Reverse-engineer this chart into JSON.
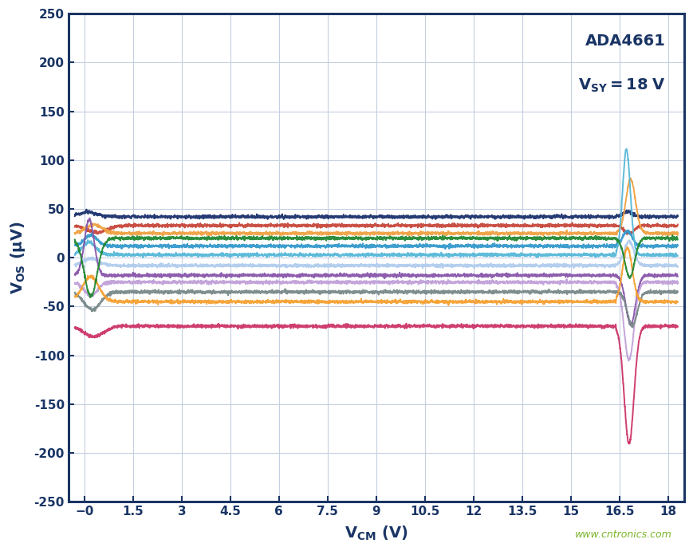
{
  "title_line1": "ADA4661",
  "title_line2": "V_{SY} = 18 V",
  "xlabel": "V_{CM} (V)",
  "ylabel": "V_{OS} (μV)",
  "xlim": [
    -0.5,
    18.5
  ],
  "ylim": [
    -250,
    250
  ],
  "xtick_positions": [
    0,
    1.5,
    3,
    4.5,
    6,
    7.5,
    9,
    10.5,
    12,
    13.5,
    15,
    16.5,
    18
  ],
  "xtick_labels": [
    "−0",
    "1.5",
    "3",
    "4.5",
    "6",
    "7.5",
    "9",
    "10.5",
    "12",
    "13.5",
    "15",
    "16.5",
    "18"
  ],
  "ytick_positions": [
    -250,
    -200,
    -150,
    -100,
    -50,
    0,
    50,
    100,
    150,
    200,
    250
  ],
  "watermark": "www.cntronics.com",
  "bg_color": "#ffffff",
  "plot_bg_color": "#ffffff",
  "border_color": "#1a3565",
  "grid_color": "#c5cfe0",
  "watermark_color": "#78b428",
  "title_color": "#1a3565",
  "curves": [
    {
      "flat": 42,
      "color": "#1a2f6b",
      "lp": 5,
      "rp": 5,
      "lpx": 0.1,
      "rpx": 16.75,
      "lsig": 0.3,
      "rsig": 0.15
    },
    {
      "flat": 33,
      "color": "#c8453a",
      "lp": -8,
      "rp": -8,
      "lpx": 0.4,
      "rpx": 16.8,
      "lsig": 0.3,
      "rsig": 0.15
    },
    {
      "flat": 25,
      "color": "#f0a040",
      "lp": 10,
      "rp": 55,
      "lpx": 0.3,
      "rpx": 16.85,
      "lsig": 0.25,
      "rsig": 0.15
    },
    {
      "flat": 12,
      "color": "#3399cc",
      "lp": 12,
      "rp": 15,
      "lpx": 0.2,
      "rpx": 16.75,
      "lsig": 0.2,
      "rsig": 0.15
    },
    {
      "flat": 3,
      "color": "#55b8d8",
      "lp": 14,
      "rp": 108,
      "lpx": 0.15,
      "rpx": 16.72,
      "lsig": 0.2,
      "rsig": 0.12
    },
    {
      "flat": -8,
      "color": "#b0ccee",
      "lp": 8,
      "rp": 25,
      "lpx": 0.2,
      "rpx": 16.8,
      "lsig": 0.25,
      "rsig": 0.15
    },
    {
      "flat": -18,
      "color": "#8855aa",
      "lp": 62,
      "rp": -50,
      "lpx": 0.15,
      "rpx": 16.85,
      "lsig": 0.15,
      "rsig": 0.15
    },
    {
      "flat": -25,
      "color": "#c0a0d8",
      "lp": -15,
      "rp": -80,
      "lpx": 0.2,
      "rpx": 16.8,
      "lsig": 0.2,
      "rsig": 0.15
    },
    {
      "flat": -35,
      "color": "#778888",
      "lp": -20,
      "rp": -35,
      "lpx": 0.25,
      "rpx": 16.9,
      "lsig": 0.25,
      "rsig": 0.15
    },
    {
      "flat": -45,
      "color": "#f5a030",
      "lp": 28,
      "rp": 55,
      "lpx": 0.2,
      "rpx": 16.75,
      "lsig": 0.25,
      "rsig": 0.15
    },
    {
      "flat": -70,
      "color": "#cc3366",
      "lp": -12,
      "rp": -120,
      "lpx": 0.3,
      "rpx": 16.8,
      "lsig": 0.3,
      "rsig": 0.15
    },
    {
      "flat": 20,
      "color": "#228833",
      "lp": -65,
      "rp": -40,
      "lpx": 0.2,
      "rpx": 16.82,
      "lsig": 0.2,
      "rsig": 0.15
    }
  ]
}
